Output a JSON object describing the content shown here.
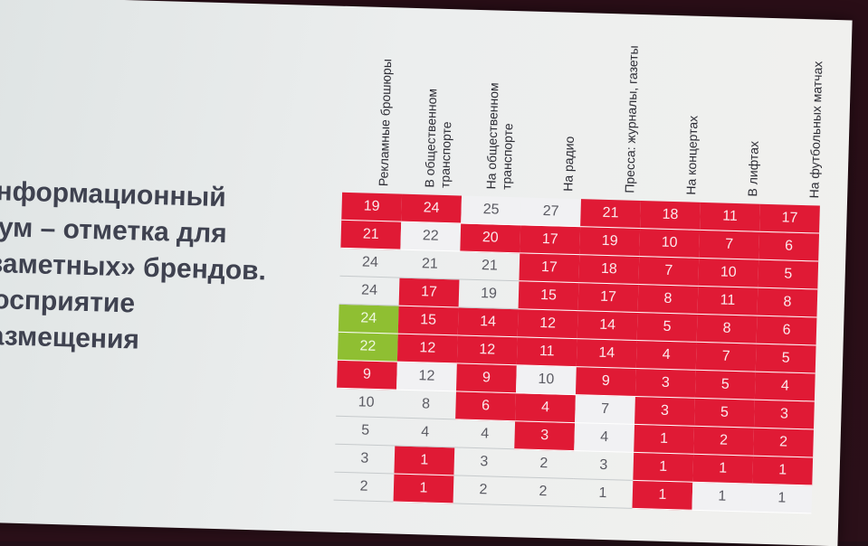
{
  "slide": {
    "title_lines": [
      "Информационный",
      "шум – отметка для",
      "«заметных» брендов.",
      "Восприятие",
      "размещения"
    ]
  },
  "columns": [
    "Рекламные брошюры",
    "В общественном транспорте",
    "На общественном транспорте",
    "На радио",
    "Пресса: журналы, газеты",
    "На концертах",
    "В лифтах",
    "На футбольных матчах"
  ],
  "colors": {
    "red": "#e01a35",
    "green": "#8fbf32",
    "white": "#f1f1f3"
  },
  "rows": [
    [
      {
        "v": "19",
        "c": "r"
      },
      {
        "v": "24",
        "c": "r"
      },
      {
        "v": "25",
        "c": "w"
      },
      {
        "v": "27",
        "c": "w"
      },
      {
        "v": "21",
        "c": "r"
      },
      {
        "v": "18",
        "c": "r"
      },
      {
        "v": "11",
        "c": "r"
      },
      {
        "v": "17",
        "c": "r"
      }
    ],
    [
      {
        "v": "21",
        "c": "r"
      },
      {
        "v": "22",
        "c": "w"
      },
      {
        "v": "20",
        "c": "r"
      },
      {
        "v": "17",
        "c": "r"
      },
      {
        "v": "19",
        "c": "r"
      },
      {
        "v": "10",
        "c": "r"
      },
      {
        "v": "7",
        "c": "r"
      },
      {
        "v": "6",
        "c": "r"
      }
    ],
    [
      {
        "v": "24",
        "c": "n"
      },
      {
        "v": "21",
        "c": "n"
      },
      {
        "v": "21",
        "c": "n"
      },
      {
        "v": "17",
        "c": "r"
      },
      {
        "v": "18",
        "c": "r"
      },
      {
        "v": "7",
        "c": "r"
      },
      {
        "v": "10",
        "c": "r"
      },
      {
        "v": "5",
        "c": "r"
      }
    ],
    [
      {
        "v": "24",
        "c": "n"
      },
      {
        "v": "17",
        "c": "r"
      },
      {
        "v": "19",
        "c": "n"
      },
      {
        "v": "15",
        "c": "r"
      },
      {
        "v": "17",
        "c": "r"
      },
      {
        "v": "8",
        "c": "r"
      },
      {
        "v": "11",
        "c": "r"
      },
      {
        "v": "8",
        "c": "r"
      }
    ],
    [
      {
        "v": "24",
        "c": "g"
      },
      {
        "v": "15",
        "c": "r"
      },
      {
        "v": "14",
        "c": "r"
      },
      {
        "v": "12",
        "c": "r"
      },
      {
        "v": "14",
        "c": "r"
      },
      {
        "v": "5",
        "c": "r"
      },
      {
        "v": "8",
        "c": "r"
      },
      {
        "v": "6",
        "c": "r"
      }
    ],
    [
      {
        "v": "22",
        "c": "g"
      },
      {
        "v": "12",
        "c": "r"
      },
      {
        "v": "12",
        "c": "r"
      },
      {
        "v": "11",
        "c": "r"
      },
      {
        "v": "14",
        "c": "r"
      },
      {
        "v": "4",
        "c": "r"
      },
      {
        "v": "7",
        "c": "r"
      },
      {
        "v": "5",
        "c": "r"
      }
    ],
    [
      {
        "v": "9",
        "c": "r"
      },
      {
        "v": "12",
        "c": "w"
      },
      {
        "v": "9",
        "c": "r"
      },
      {
        "v": "10",
        "c": "w"
      },
      {
        "v": "9",
        "c": "r"
      },
      {
        "v": "3",
        "c": "r"
      },
      {
        "v": "5",
        "c": "r"
      },
      {
        "v": "4",
        "c": "r"
      }
    ],
    [
      {
        "v": "10",
        "c": "n"
      },
      {
        "v": "8",
        "c": "n"
      },
      {
        "v": "6",
        "c": "r"
      },
      {
        "v": "4",
        "c": "r"
      },
      {
        "v": "7",
        "c": "w"
      },
      {
        "v": "3",
        "c": "r"
      },
      {
        "v": "5",
        "c": "r"
      },
      {
        "v": "3",
        "c": "r"
      }
    ],
    [
      {
        "v": "5",
        "c": "n"
      },
      {
        "v": "4",
        "c": "n"
      },
      {
        "v": "4",
        "c": "n"
      },
      {
        "v": "3",
        "c": "r"
      },
      {
        "v": "4",
        "c": "w"
      },
      {
        "v": "1",
        "c": "r"
      },
      {
        "v": "2",
        "c": "r"
      },
      {
        "v": "2",
        "c": "r"
      }
    ],
    [
      {
        "v": "3",
        "c": "n"
      },
      {
        "v": "1",
        "c": "r"
      },
      {
        "v": "3",
        "c": "n"
      },
      {
        "v": "2",
        "c": "n"
      },
      {
        "v": "3",
        "c": "n"
      },
      {
        "v": "1",
        "c": "r"
      },
      {
        "v": "1",
        "c": "r"
      },
      {
        "v": "1",
        "c": "r"
      }
    ],
    [
      {
        "v": "2",
        "c": "n"
      },
      {
        "v": "1",
        "c": "r"
      },
      {
        "v": "2",
        "c": "n"
      },
      {
        "v": "2",
        "c": "n"
      },
      {
        "v": "1",
        "c": "n"
      },
      {
        "v": "1",
        "c": "r"
      },
      {
        "v": "1",
        "c": "w"
      },
      {
        "v": "1",
        "c": "w"
      }
    ]
  ]
}
